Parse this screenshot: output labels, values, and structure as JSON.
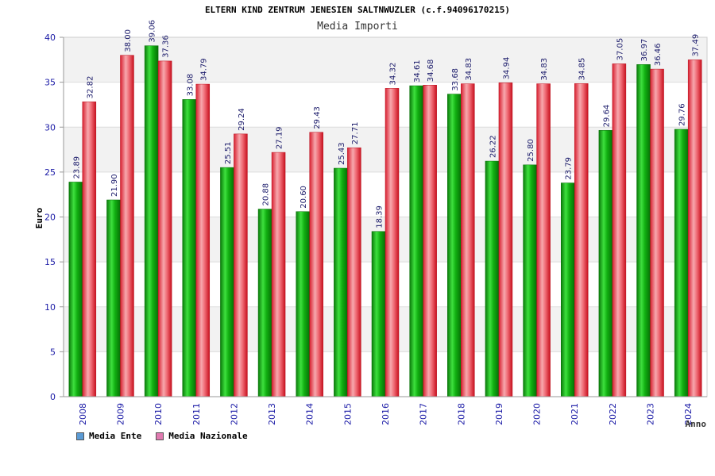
{
  "header": {
    "title": "ELTERN KIND ZENTRUM JENESIEN SALTNWUZLER (c.f.94096170215)",
    "subtitle": "Media Importi"
  },
  "legend": [
    {
      "label": "Media Ente",
      "color": "#5b9bd5"
    },
    {
      "label": "Media Nazionale",
      "color": "#e07ab0"
    }
  ],
  "chart_data": {
    "type": "bar",
    "title": "Media Importi",
    "xlabel": "Anno",
    "ylabel": "Euro",
    "ylim": [
      0,
      40
    ],
    "yticks": [
      0,
      5,
      10,
      15,
      20,
      25,
      30,
      35,
      40
    ],
    "categories": [
      "2008",
      "2009",
      "2010",
      "2011",
      "2012",
      "2013",
      "2014",
      "2015",
      "2016",
      "2017",
      "2018",
      "2019",
      "2020",
      "2021",
      "2022",
      "2023",
      "2024"
    ],
    "series": [
      {
        "name": "Media Ente",
        "color": "#11aa11",
        "values": [
          23.89,
          21.9,
          39.06,
          33.08,
          25.51,
          20.88,
          20.6,
          25.43,
          18.39,
          34.61,
          33.68,
          26.22,
          25.8,
          23.79,
          29.64,
          36.97,
          29.76
        ],
        "labels": [
          "23.89",
          "21.90",
          "39.06",
          "33.08",
          "25.51",
          "20.88",
          "20.60",
          "25.43",
          "18.39",
          "34.61",
          "33.68",
          "26.22",
          "25.80",
          "23.79",
          "29.64",
          "36.97",
          "29.76"
        ]
      },
      {
        "name": "Media Nazionale",
        "color": "#e8434f",
        "values": [
          32.82,
          38.0,
          37.36,
          34.79,
          29.24,
          27.19,
          29.43,
          27.71,
          34.32,
          34.68,
          34.83,
          34.94,
          34.83,
          34.85,
          37.05,
          36.46,
          37.49
        ],
        "labels": [
          "32.82",
          "38.00",
          "37.36",
          "34.79",
          "29.24",
          "27.19",
          "29.43",
          "27.71",
          "34.32",
          "34.68",
          "34.83",
          "34.94",
          "34.83",
          "34.85",
          "37.05",
          "36.46",
          "37.49"
        ]
      }
    ],
    "grid": true,
    "legend_position": "bottom-left"
  }
}
